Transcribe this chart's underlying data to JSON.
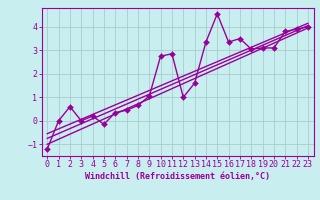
{
  "title": "",
  "xlabel": "Windchill (Refroidissement éolien,°C)",
  "bg_color": "#c8eef0",
  "grid_color": "#aacccc",
  "line_color": "#990099",
  "xlim": [
    -0.5,
    23.5
  ],
  "ylim": [
    -1.5,
    4.8
  ],
  "xticks": [
    0,
    1,
    2,
    3,
    4,
    5,
    6,
    7,
    8,
    9,
    10,
    11,
    12,
    13,
    14,
    15,
    16,
    17,
    18,
    19,
    20,
    21,
    22,
    23
  ],
  "yticks": [
    -1,
    0,
    1,
    2,
    3,
    4
  ],
  "data_x": [
    0,
    1,
    2,
    3,
    4,
    5,
    6,
    7,
    8,
    9,
    10,
    11,
    12,
    13,
    14,
    15,
    16,
    17,
    18,
    19,
    20,
    21,
    22,
    23
  ],
  "data_y": [
    -1.2,
    0.0,
    0.6,
    0.0,
    0.2,
    -0.15,
    0.35,
    0.45,
    0.65,
    1.05,
    2.75,
    2.85,
    1.0,
    1.6,
    3.35,
    4.55,
    3.35,
    3.5,
    3.05,
    3.1,
    3.1,
    3.8,
    3.9,
    4.0
  ],
  "reg_lines": [
    {
      "x": [
        0,
        23
      ],
      "y": [
        -1.0,
        3.95
      ]
    },
    {
      "x": [
        0,
        23
      ],
      "y": [
        -0.55,
        4.15
      ]
    },
    {
      "x": [
        0,
        23
      ],
      "y": [
        -0.75,
        4.05
      ]
    }
  ],
  "marker_size": 3,
  "line_width": 1.0,
  "xlabel_fontsize": 6,
  "tick_fontsize": 6
}
